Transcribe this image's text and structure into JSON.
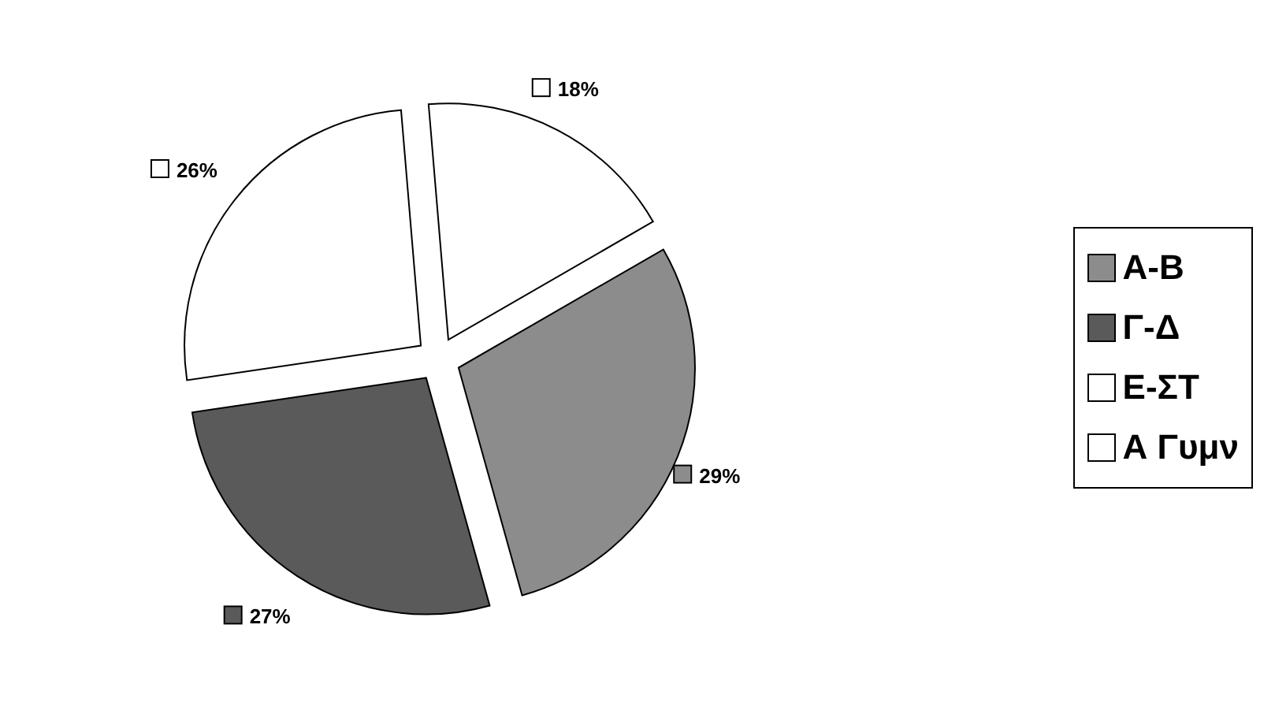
{
  "chart_data": {
    "type": "pie",
    "categories": [
      "Α-Β",
      "Γ-Δ",
      "Ε-ΣΤ",
      "Α  Γυμν"
    ],
    "values": [
      29,
      27,
      26,
      18
    ],
    "colors": [
      "#8c8c8c",
      "#5a5a5a",
      "#ffffff",
      "#ffffff"
    ],
    "value_labels": [
      "29%",
      "27%",
      "26%",
      "18%"
    ],
    "legend": "right"
  }
}
